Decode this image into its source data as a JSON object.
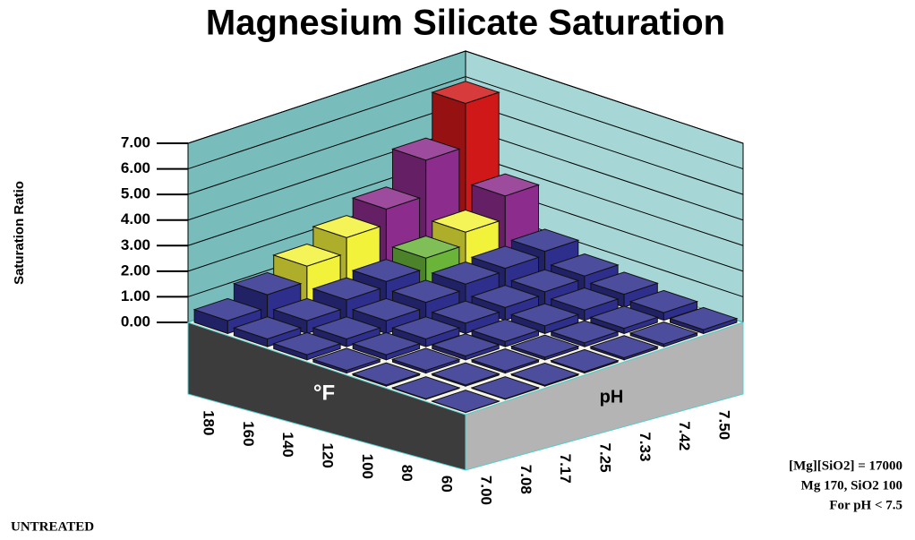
{
  "chart_data": {
    "type": "bar3d",
    "title": "Magnesium Silicate Saturation",
    "y_label": "Saturation Ratio",
    "x_label": "°F",
    "z_label": "pH",
    "categories": [
      "180",
      "160",
      "140",
      "120",
      "100",
      "80",
      "60"
    ],
    "depth_categories": [
      "7.00",
      "7.08",
      "7.17",
      "7.25",
      "7.33",
      "7.42",
      "7.50"
    ],
    "values": [
      [
        0.5,
        1.0,
        1.6,
        2.2,
        2.8,
        4.2,
        5.9
      ],
      [
        0.3,
        0.5,
        0.8,
        1.0,
        1.4,
        1.9,
        2.8
      ],
      [
        0.2,
        0.3,
        0.5,
        0.7,
        0.9,
        1.0,
        1.15
      ],
      [
        0.1,
        0.2,
        0.3,
        0.4,
        0.5,
        0.6,
        0.7
      ],
      [
        0.05,
        0.1,
        0.15,
        0.2,
        0.3,
        0.4,
        0.5
      ],
      [
        0.02,
        0.05,
        0.08,
        0.1,
        0.15,
        0.2,
        0.3
      ],
      [
        0.01,
        0.02,
        0.04,
        0.05,
        0.08,
        0.1,
        0.15
      ]
    ],
    "colors": [
      [
        "#2e2e8c",
        "#2e2e8c",
        "#f2f23a",
        "#f2f23a",
        "#8c2c8c",
        "#8c2c8c",
        "#d01818"
      ],
      [
        "#2e2e8c",
        "#2e2e8c",
        "#2e2e8c",
        "#2e2e8c",
        "#6ab43a",
        "#f2f23a",
        "#8c2c8c"
      ],
      [
        "#2e2e8c",
        "#2e2e8c",
        "#2e2e8c",
        "#2e2e8c",
        "#2e2e8c",
        "#2e2e8c",
        "#2e2e8c"
      ],
      [
        "#2e2e8c",
        "#2e2e8c",
        "#2e2e8c",
        "#2e2e8c",
        "#2e2e8c",
        "#2e2e8c",
        "#2e2e8c"
      ],
      [
        "#2e2e8c",
        "#2e2e8c",
        "#2e2e8c",
        "#2e2e8c",
        "#2e2e8c",
        "#2e2e8c",
        "#2e2e8c"
      ],
      [
        "#2e2e8c",
        "#2e2e8c",
        "#2e2e8c",
        "#2e2e8c",
        "#2e2e8c",
        "#2e2e8c",
        "#2e2e8c"
      ],
      [
        "#2e2e8c",
        "#2e2e8c",
        "#2e2e8c",
        "#2e2e8c",
        "#2e2e8c",
        "#2e2e8c",
        "#2e2e8c"
      ]
    ],
    "ylim": [
      0,
      7
    ],
    "yticks": [
      {
        "value": 0,
        "label": "0.00"
      },
      {
        "value": 1,
        "label": "1.00"
      },
      {
        "value": 2,
        "label": "2.00"
      },
      {
        "value": 3,
        "label": "3.00"
      },
      {
        "value": 4,
        "label": "4.00"
      },
      {
        "value": 5,
        "label": "5.00"
      },
      {
        "value": 6,
        "label": "6.00"
      },
      {
        "value": 7,
        "label": "7.00"
      }
    ],
    "grid": true,
    "notes": [
      "[Mg][SiO2] = 17000",
      "Mg 170,  SiO2 100",
      "For pH < 7.5"
    ],
    "footer": "UNTREATED"
  }
}
